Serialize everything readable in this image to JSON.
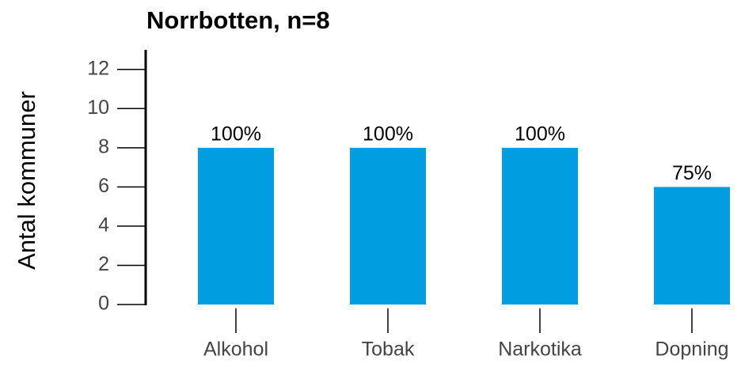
{
  "chart_data": {
    "type": "bar",
    "title": "Norrbotten, n=8",
    "ylabel": "Antal kommuner",
    "categories": [
      "Alkohol",
      "Tobak",
      "Narkotika",
      "Dopning"
    ],
    "values": [
      8,
      8,
      8,
      6
    ],
    "annotations": [
      "100%",
      "100%",
      "100%",
      "75%"
    ],
    "color": "#009ee0",
    "ylim": [
      0,
      13
    ],
    "yticks": [
      0,
      2,
      4,
      6,
      8,
      10,
      12
    ],
    "grid": false
  }
}
